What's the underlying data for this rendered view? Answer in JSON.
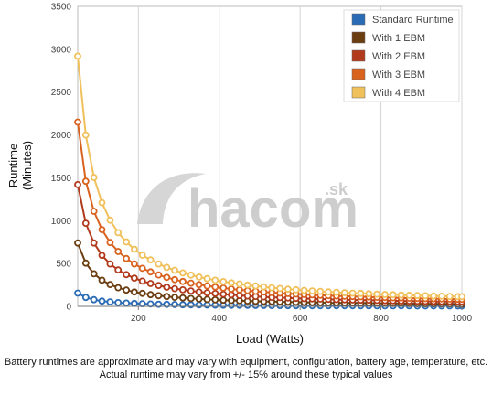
{
  "chart_data": {
    "type": "line",
    "title": "",
    "xlabel": "Load (Watts)",
    "ylabel_lines": [
      "Runtime",
      "(Minutes)"
    ],
    "xlim": [
      50,
      1000
    ],
    "ylim": [
      0,
      3500
    ],
    "x_ticks": [
      200,
      400,
      600,
      800,
      1000
    ],
    "y_ticks": [
      0,
      500,
      1000,
      1500,
      2000,
      2500,
      3000,
      3500
    ],
    "grid": "vertical",
    "legend_position": "top-right",
    "x": [
      50,
      70,
      90,
      110,
      130,
      150,
      170,
      190,
      210,
      230,
      250,
      270,
      290,
      310,
      330,
      350,
      370,
      390,
      410,
      430,
      450,
      470,
      490,
      510,
      530,
      550,
      570,
      590,
      610,
      630,
      650,
      670,
      690,
      710,
      730,
      750,
      770,
      790,
      810,
      830,
      850,
      870,
      890,
      910,
      930,
      950,
      970,
      990,
      1000
    ],
    "series": [
      {
        "name": "Standard Runtime",
        "color": "#2a6bb5",
        "values": [
          155,
          105,
          78,
          62,
          52,
          44,
          38,
          34,
          31,
          28,
          25,
          23,
          21,
          19,
          18,
          17,
          16,
          15,
          14,
          13,
          13,
          12,
          11,
          11,
          10,
          10,
          9,
          9,
          9,
          8,
          8,
          8,
          7,
          7,
          7,
          7,
          6,
          6,
          6,
          6,
          6,
          6,
          5,
          5,
          5,
          5,
          5,
          5,
          5
        ]
      },
      {
        "name": "With 1 EBM",
        "color": "#6b3e12",
        "values": [
          740,
          505,
          380,
          305,
          255,
          218,
          190,
          168,
          151,
          137,
          125,
          115,
          106,
          99,
          92,
          86,
          81,
          77,
          73,
          69,
          66,
          63,
          60,
          57,
          55,
          53,
          51,
          49,
          47,
          45,
          44,
          42,
          41,
          40,
          39,
          38,
          37,
          36,
          35,
          34,
          33,
          32,
          31,
          30,
          30,
          29,
          28,
          28,
          27
        ]
      },
      {
        "name": "With 2 EBM",
        "color": "#b23a1c",
        "values": [
          1420,
          970,
          740,
          595,
          495,
          425,
          370,
          330,
          295,
          267,
          244,
          224,
          207,
          193,
          180,
          169,
          159,
          150,
          142,
          135,
          128,
          122,
          116,
          111,
          106,
          102,
          98,
          94,
          91,
          88,
          85,
          82,
          79,
          77,
          75,
          73,
          71,
          69,
          67,
          65,
          63,
          62,
          60,
          59,
          57,
          56,
          55,
          54,
          53
        ]
      },
      {
        "name": "With 3 EBM",
        "color": "#d9621f",
        "values": [
          2150,
          1460,
          1110,
          895,
          745,
          640,
          558,
          495,
          444,
          402,
          367,
          338,
          312,
          290,
          271,
          254,
          239,
          226,
          214,
          203,
          193,
          184,
          176,
          168,
          161,
          155,
          149,
          144,
          139,
          134,
          130,
          125,
          122,
          118,
          115,
          112,
          109,
          106,
          103,
          100,
          98,
          95,
          93,
          91,
          89,
          87,
          85,
          83,
          82
        ]
      },
      {
        "name": "With 4 EBM",
        "color": "#f0c05a",
        "values": [
          2920,
          2000,
          1505,
          1210,
          1005,
          860,
          752,
          667,
          598,
          542,
          495,
          455,
          421,
          391,
          365,
          343,
          323,
          305,
          289,
          274,
          261,
          249,
          238,
          227,
          218,
          209,
          201,
          194,
          187,
          180,
          175,
          169,
          164,
          159,
          155,
          151,
          147,
          143,
          139,
          136,
          132,
          129,
          126,
          124,
          121,
          118,
          116,
          114,
          113
        ]
      }
    ]
  },
  "watermark": {
    "main": "hacom",
    "suffix": ".sk"
  },
  "footnote": {
    "line1": "Battery runtimes are approximate and may vary with equipment, configuration, battery age, temperature, etc.",
    "line2": "Actual runtime may vary from +/- 15% around these typical values"
  }
}
